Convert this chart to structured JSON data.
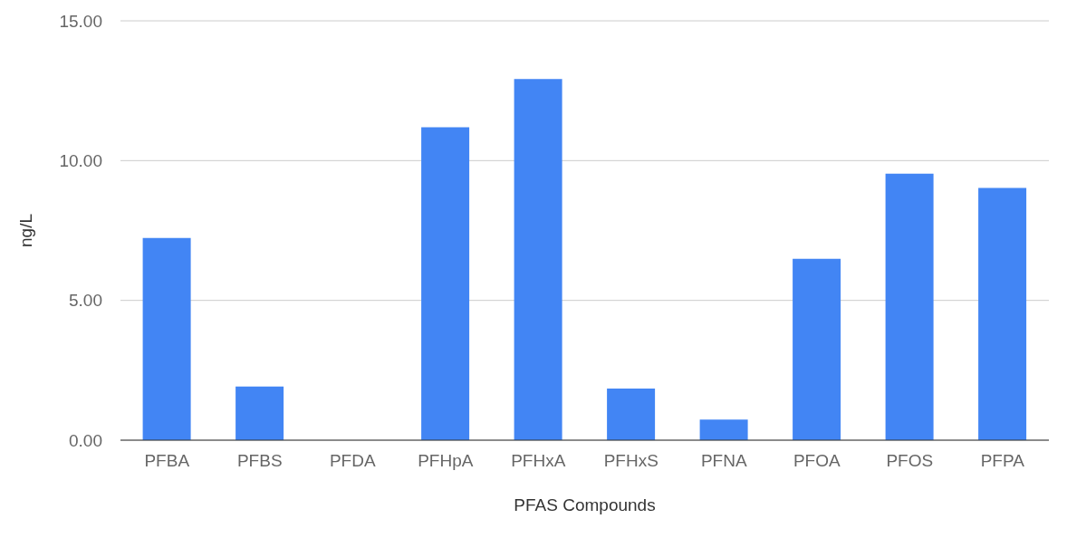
{
  "chart_data": {
    "type": "bar",
    "xlabel": "PFAS Compounds",
    "ylabel": "ng/L",
    "categories": [
      "PFBA",
      "PFBS",
      "PFDA",
      "PFHpA",
      "PFHxA",
      "PFHxS",
      "PFNA",
      "PFOA",
      "PFOS",
      "PFPA"
    ],
    "values": [
      7.23,
      1.92,
      0,
      11.19,
      12.92,
      1.85,
      0.74,
      6.49,
      9.53,
      9.02
    ],
    "color": "#4285f4",
    "ylim": [
      0,
      15
    ],
    "yticks": [
      {
        "value": 0,
        "label": "0.00"
      },
      {
        "value": 5,
        "label": "5.00"
      },
      {
        "value": 10,
        "label": "10.00"
      },
      {
        "value": 15,
        "label": "15.00"
      }
    ],
    "grid": "y"
  }
}
